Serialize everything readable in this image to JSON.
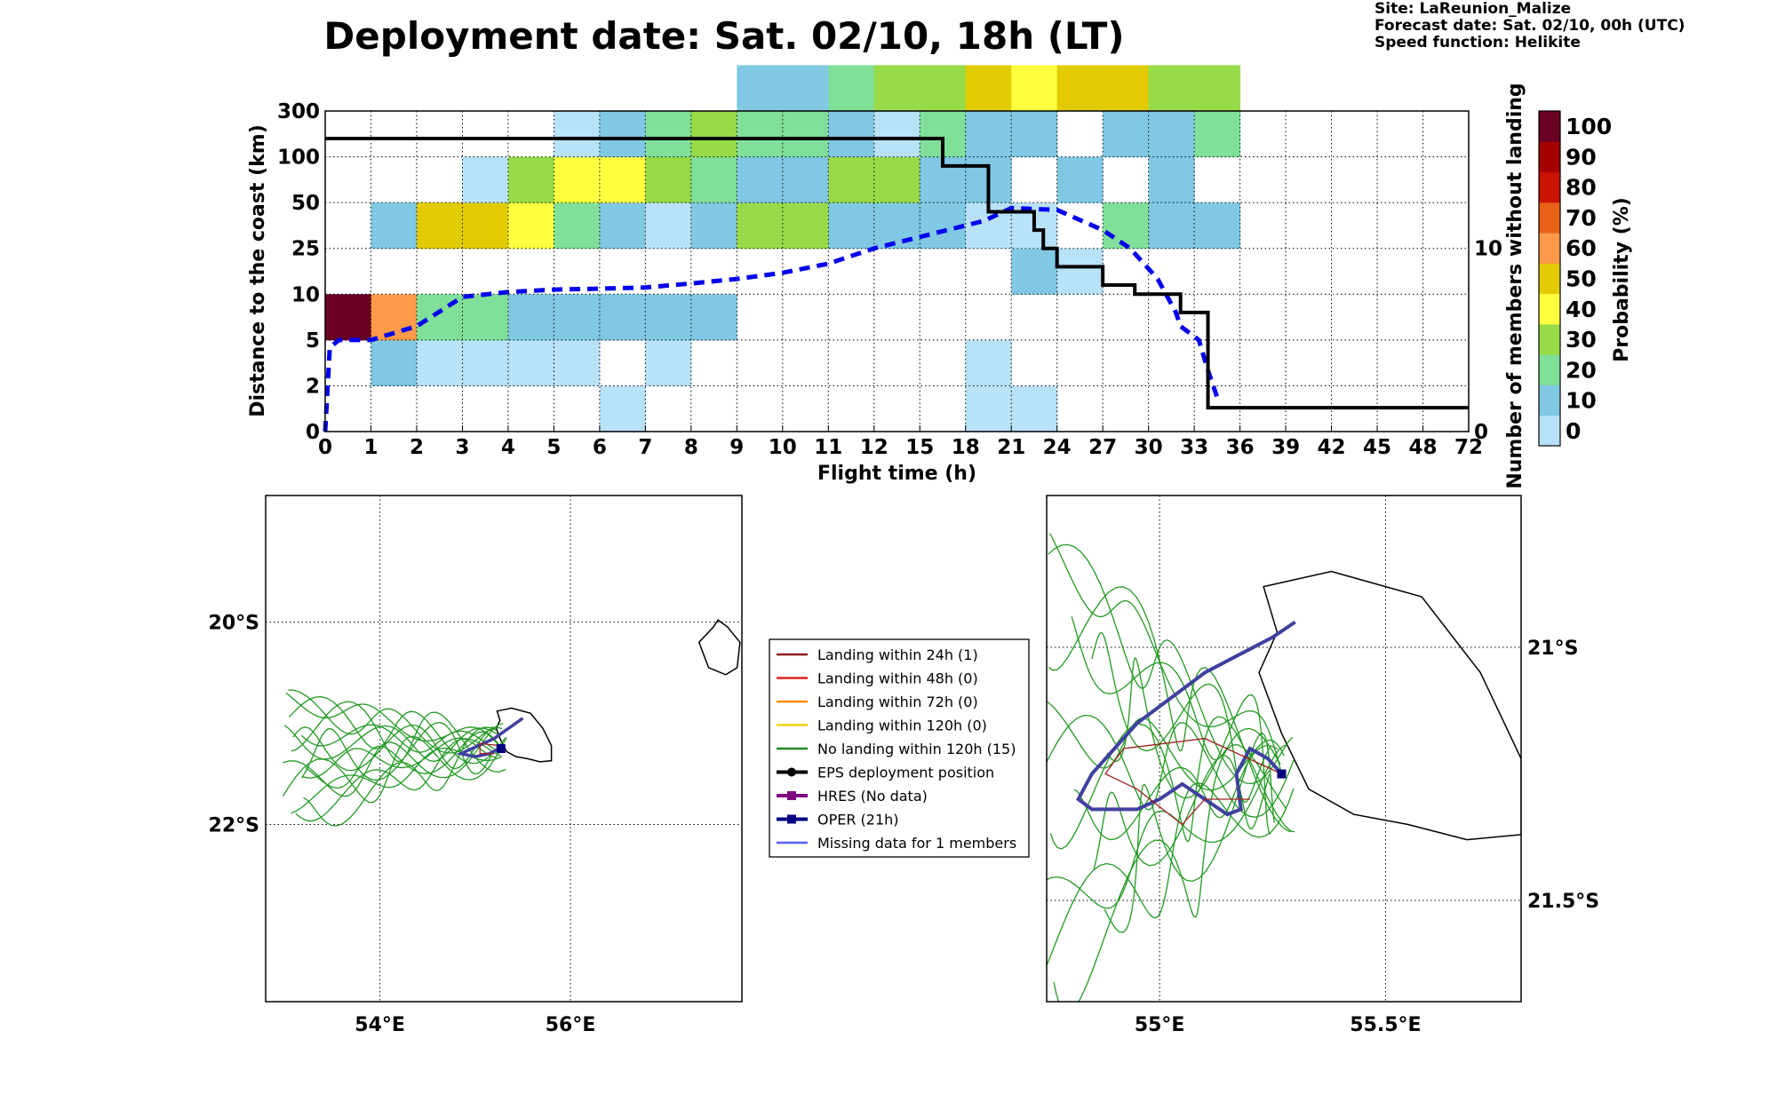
{
  "header": {
    "title": "Deployment date: Sat. 02/10, 18h (LT)",
    "site": "Site: LaReunion_Malize",
    "forecast": "Forecast date: Sat. 02/10, 00h (UTC)",
    "speed": "Speed function: Helikite"
  },
  "chart_data": [
    {
      "type": "heatmap",
      "xlabel": "Flight time (h)",
      "ylabel": "Distance to the coast (km)",
      "y2label": "Number of members without landing",
      "colorbar_label": "Probability (%)",
      "x_ticks": [
        "0",
        "1",
        "2",
        "3",
        "4",
        "5",
        "6",
        "7",
        "8",
        "9",
        "10",
        "11",
        "12",
        "15",
        "18",
        "21",
        "24",
        "27",
        "30",
        "33",
        "36",
        "39",
        "42",
        "45",
        "48",
        "72"
      ],
      "y_ticks": [
        "0",
        "2",
        "5",
        "10",
        "25",
        "50",
        "100",
        "300"
      ],
      "y2_ticks": [
        "0",
        "10"
      ],
      "y2_range": [
        0,
        17.5
      ],
      "colorbar_ticks": [
        "0",
        "10",
        "20",
        "30",
        "40",
        "50",
        "60",
        "70",
        "80",
        "90",
        "100"
      ],
      "colorbar_colors": [
        "#b8e2f8",
        "#80c8e3",
        "#80e09a",
        "#98db48",
        "#ffff40",
        "#e2cb00",
        "#fe9a4a",
        "#e86218",
        "#c81400",
        "#a60000",
        "#6a0021"
      ],
      "cells": [
        [
          0,
          2,
          100
        ],
        [
          1,
          1,
          10
        ],
        [
          1,
          2,
          60
        ],
        [
          1,
          4,
          10
        ],
        [
          2,
          1,
          0
        ],
        [
          2,
          2,
          20
        ],
        [
          2,
          4,
          50
        ],
        [
          3,
          1,
          0
        ],
        [
          3,
          2,
          20
        ],
        [
          3,
          4,
          50
        ],
        [
          3,
          5,
          0
        ],
        [
          4,
          1,
          0
        ],
        [
          4,
          2,
          10
        ],
        [
          4,
          4,
          40
        ],
        [
          4,
          5,
          30
        ],
        [
          5,
          1,
          0
        ],
        [
          5,
          2,
          10
        ],
        [
          5,
          4,
          20
        ],
        [
          5,
          5,
          40
        ],
        [
          5,
          6,
          0
        ],
        [
          6,
          0,
          0
        ],
        [
          6,
          2,
          10
        ],
        [
          6,
          4,
          10
        ],
        [
          6,
          5,
          40
        ],
        [
          6,
          6,
          10
        ],
        [
          7,
          1,
          0
        ],
        [
          7,
          2,
          10
        ],
        [
          7,
          4,
          0
        ],
        [
          7,
          5,
          30
        ],
        [
          7,
          6,
          20
        ],
        [
          8,
          2,
          10
        ],
        [
          8,
          4,
          10
        ],
        [
          8,
          5,
          20
        ],
        [
          8,
          6,
          30
        ],
        [
          9,
          4,
          30
        ],
        [
          9,
          5,
          10
        ],
        [
          9,
          6,
          20
        ],
        [
          9,
          7,
          10
        ],
        [
          10,
          4,
          30
        ],
        [
          10,
          5,
          10
        ],
        [
          10,
          6,
          20
        ],
        [
          10,
          7,
          10
        ],
        [
          11,
          4,
          10
        ],
        [
          11,
          5,
          30
        ],
        [
          11,
          6,
          10
        ],
        [
          11,
          7,
          20
        ],
        [
          12,
          4,
          10
        ],
        [
          12,
          5,
          30
        ],
        [
          12,
          6,
          0
        ],
        [
          12,
          7,
          30
        ],
        [
          13,
          4,
          10
        ],
        [
          13,
          5,
          10
        ],
        [
          13,
          6,
          20
        ],
        [
          13,
          7,
          30
        ],
        [
          14,
          0,
          0
        ],
        [
          14,
          1,
          0
        ],
        [
          14,
          4,
          0
        ],
        [
          14,
          5,
          10
        ],
        [
          14,
          6,
          10
        ],
        [
          14,
          7,
          50
        ],
        [
          15,
          0,
          0
        ],
        [
          15,
          3,
          10
        ],
        [
          15,
          4,
          0
        ],
        [
          15,
          6,
          10
        ],
        [
          15,
          7,
          40
        ],
        [
          16,
          3,
          0
        ],
        [
          16,
          5,
          10
        ],
        [
          16,
          7,
          50
        ],
        [
          17,
          4,
          20
        ],
        [
          17,
          6,
          10
        ],
        [
          17,
          7,
          50
        ],
        [
          18,
          4,
          10
        ],
        [
          18,
          5,
          10
        ],
        [
          18,
          6,
          10
        ],
        [
          18,
          7,
          30
        ],
        [
          19,
          4,
          10
        ],
        [
          19,
          6,
          20
        ],
        [
          19,
          7,
          30
        ]
      ],
      "series": [
        {
          "name": "Distance to the coast (mean)",
          "style": "dashed",
          "color": "#0000ee",
          "points": [
            [
              0,
              0
            ],
            [
              0.1,
              4.5
            ],
            [
              0.3,
              5
            ],
            [
              1,
              5
            ],
            [
              2,
              6.5
            ],
            [
              3,
              9.7
            ],
            [
              4,
              10.7
            ],
            [
              5,
              11.5
            ],
            [
              6,
              11.8
            ],
            [
              7,
              12.2
            ],
            [
              8,
              13.5
            ],
            [
              9,
              15
            ],
            [
              10,
              17
            ],
            [
              11,
              20
            ],
            [
              12,
              25
            ],
            [
              14.4,
              40
            ],
            [
              15,
              47
            ],
            [
              16,
              46
            ],
            [
              17,
              35
            ],
            [
              17.6,
              25
            ],
            [
              17.9,
              20
            ],
            [
              18.2,
              15
            ],
            [
              18.6,
              8
            ],
            [
              18.7,
              6.5
            ],
            [
              19.1,
              5
            ],
            [
              19.3,
              3
            ],
            [
              19.5,
              1.5
            ]
          ]
        },
        {
          "name": "Number of members without landing",
          "style": "step",
          "color": "#000000",
          "points": [
            [
              0,
              16
            ],
            [
              13.5,
              16
            ],
            [
              13.5,
              14.5
            ],
            [
              14.5,
              14.5
            ],
            [
              14.5,
              12
            ],
            [
              15.5,
              12
            ],
            [
              15.5,
              11
            ],
            [
              15.7,
              11
            ],
            [
              15.7,
              10
            ],
            [
              16,
              10
            ],
            [
              16,
              9
            ],
            [
              17,
              9
            ],
            [
              17,
              8
            ],
            [
              17.7,
              8
            ],
            [
              17.7,
              7.5
            ],
            [
              18.7,
              7.5
            ],
            [
              18.7,
              6.5
            ],
            [
              19.3,
              6.5
            ],
            [
              19.3,
              1.3
            ],
            [
              25,
              1.3
            ]
          ]
        }
      ]
    },
    {
      "type": "line",
      "map": "overview",
      "xlim": [
        52.8,
        57.8
      ],
      "ylim": [
        -23.75,
        -18.75
      ],
      "x_ticks": [
        "54°E",
        "56°E"
      ],
      "y_ticks": [
        "20°S",
        "22°S"
      ],
      "grid": true
    },
    {
      "type": "line",
      "map": "zoom",
      "xlim": [
        54.75,
        55.8
      ],
      "ylim": [
        -21.7,
        -20.7
      ],
      "x_ticks": [
        "55°E",
        "55.5°E"
      ],
      "y_ticks": [
        "21°S",
        "21.5°S"
      ],
      "grid": true
    }
  ],
  "legend": {
    "items": [
      {
        "label": "Landing within 24h (1)",
        "color": "#8b1a1a",
        "marker": "none"
      },
      {
        "label": "Landing within 48h (0)",
        "color": "#e02020",
        "marker": "none"
      },
      {
        "label": "Landing within 72h (0)",
        "color": "#ff8c00",
        "marker": "none"
      },
      {
        "label": "Landing within 120h (0)",
        "color": "#f4d010",
        "marker": "none"
      },
      {
        "label": "No landing within 120h (15)",
        "color": "#1e8b1e",
        "marker": "none"
      },
      {
        "label": "EPS deployment position",
        "color": "#000000",
        "marker": "dot"
      },
      {
        "label": "HRES (No data)",
        "color": "#800080",
        "marker": "square"
      },
      {
        "label": "OPER (21h)",
        "color": "#000080",
        "marker": "square"
      },
      {
        "label": "Missing data for 1 members",
        "color": "#5a5aff",
        "marker": "none"
      }
    ]
  }
}
